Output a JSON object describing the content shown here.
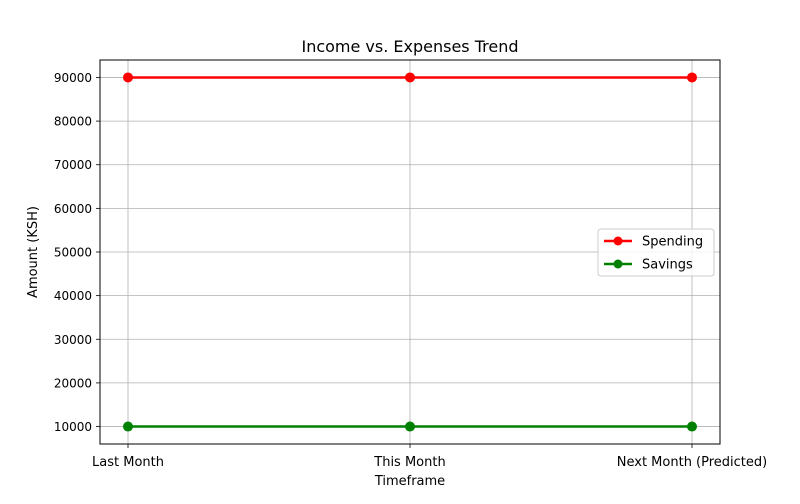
{
  "chart_data": {
    "type": "line",
    "title": "Income vs. Expenses Trend",
    "xlabel": "Timeframe",
    "ylabel": "Amount (KSH)",
    "categories": [
      "Last Month",
      "This Month",
      "Next Month (Predicted)"
    ],
    "series": [
      {
        "name": "Spending",
        "values": [
          90000,
          90000,
          90000
        ],
        "color": "#ff0000"
      },
      {
        "name": "Savings",
        "values": [
          10000,
          10000,
          10000
        ],
        "color": "#008000"
      }
    ],
    "ylim": [
      6000,
      94000
    ],
    "yticks": [
      10000,
      20000,
      30000,
      40000,
      50000,
      60000,
      70000,
      80000,
      90000
    ],
    "grid": true,
    "legend_position": "center-right"
  }
}
